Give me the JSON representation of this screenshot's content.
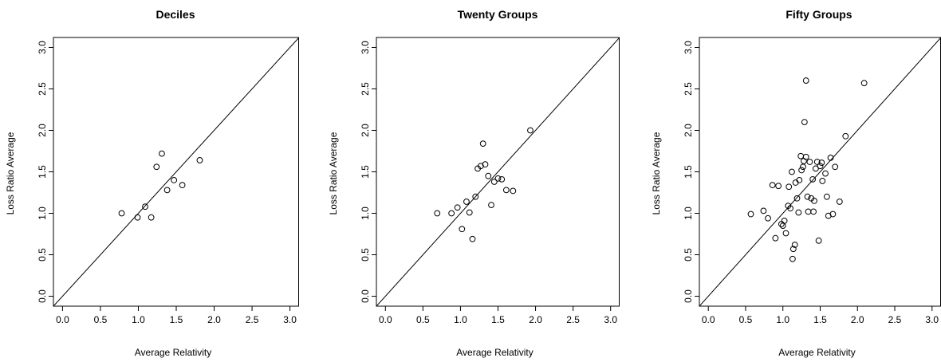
{
  "chart_data": [
    {
      "type": "scatter",
      "title": "Deciles",
      "xlabel": "Average Relativity",
      "ylabel": "Loss Ratio Average",
      "xlim": [
        -0.12,
        3.12
      ],
      "ylim": [
        -0.12,
        3.12
      ],
      "xticks": [
        "0.0",
        "0.5",
        "1.0",
        "1.5",
        "2.0",
        "2.5",
        "3.0"
      ],
      "yticks": [
        "0.0",
        "0.5",
        "1.0",
        "1.5",
        "2.0",
        "2.5",
        "3.0"
      ],
      "reference_line": "y = x",
      "grid": false,
      "legend": "none",
      "points": [
        {
          "x": 0.78,
          "y": 1.0
        },
        {
          "x": 0.99,
          "y": 0.95
        },
        {
          "x": 1.09,
          "y": 1.08
        },
        {
          "x": 1.17,
          "y": 0.95
        },
        {
          "x": 1.24,
          "y": 1.56
        },
        {
          "x": 1.31,
          "y": 1.72
        },
        {
          "x": 1.38,
          "y": 1.28
        },
        {
          "x": 1.47,
          "y": 1.4
        },
        {
          "x": 1.58,
          "y": 1.34
        },
        {
          "x": 1.81,
          "y": 1.64
        }
      ]
    },
    {
      "type": "scatter",
      "title": "Twenty Groups",
      "xlabel": "Average Relativity",
      "ylabel": "Loss Ratio Average",
      "xlim": [
        -0.12,
        3.12
      ],
      "ylim": [
        -0.12,
        3.12
      ],
      "xticks": [
        "0.0",
        "0.5",
        "1.0",
        "1.5",
        "2.0",
        "2.5",
        "3.0"
      ],
      "yticks": [
        "0.0",
        "0.5",
        "1.0",
        "1.5",
        "2.0",
        "2.5",
        "3.0"
      ],
      "reference_line": "y = x",
      "grid": false,
      "legend": "none",
      "points": [
        {
          "x": 0.69,
          "y": 1.0
        },
        {
          "x": 0.88,
          "y": 1.0
        },
        {
          "x": 0.96,
          "y": 1.07
        },
        {
          "x": 1.02,
          "y": 0.81
        },
        {
          "x": 1.08,
          "y": 1.14
        },
        {
          "x": 1.12,
          "y": 1.01
        },
        {
          "x": 1.16,
          "y": 0.69
        },
        {
          "x": 1.2,
          "y": 1.2
        },
        {
          "x": 1.23,
          "y": 1.54
        },
        {
          "x": 1.27,
          "y": 1.57
        },
        {
          "x": 1.3,
          "y": 1.84
        },
        {
          "x": 1.33,
          "y": 1.59
        },
        {
          "x": 1.37,
          "y": 1.45
        },
        {
          "x": 1.41,
          "y": 1.1
        },
        {
          "x": 1.45,
          "y": 1.38
        },
        {
          "x": 1.5,
          "y": 1.42
        },
        {
          "x": 1.55,
          "y": 1.41
        },
        {
          "x": 1.61,
          "y": 1.28
        },
        {
          "x": 1.7,
          "y": 1.27
        },
        {
          "x": 1.93,
          "y": 2.0
        }
      ]
    },
    {
      "type": "scatter",
      "title": "Fifty Groups",
      "xlabel": "Average Relativity",
      "ylabel": "Loss Ratio Average",
      "xlim": [
        -0.12,
        3.12
      ],
      "ylim": [
        -0.12,
        3.12
      ],
      "xticks": [
        "0.0",
        "0.5",
        "1.0",
        "1.5",
        "2.0",
        "2.5",
        "3.0"
      ],
      "yticks": [
        "0.0",
        "0.5",
        "1.0",
        "1.5",
        "2.0",
        "2.5",
        "3.0"
      ],
      "reference_line": "y = x",
      "grid": false,
      "legend": "none",
      "points": [
        {
          "x": 0.57,
          "y": 0.99
        },
        {
          "x": 0.74,
          "y": 1.03
        },
        {
          "x": 0.8,
          "y": 0.94
        },
        {
          "x": 0.86,
          "y": 1.34
        },
        {
          "x": 0.9,
          "y": 0.7
        },
        {
          "x": 0.94,
          "y": 1.33
        },
        {
          "x": 0.98,
          "y": 0.87
        },
        {
          "x": 1.0,
          "y": 0.85
        },
        {
          "x": 1.02,
          "y": 0.91
        },
        {
          "x": 1.04,
          "y": 0.76
        },
        {
          "x": 1.07,
          "y": 1.09
        },
        {
          "x": 1.08,
          "y": 1.32
        },
        {
          "x": 1.1,
          "y": 1.06
        },
        {
          "x": 1.12,
          "y": 1.5
        },
        {
          "x": 1.13,
          "y": 0.45
        },
        {
          "x": 1.14,
          "y": 0.57
        },
        {
          "x": 1.16,
          "y": 0.62
        },
        {
          "x": 1.17,
          "y": 1.37
        },
        {
          "x": 1.19,
          "y": 1.18
        },
        {
          "x": 1.21,
          "y": 1.01
        },
        {
          "x": 1.22,
          "y": 1.4
        },
        {
          "x": 1.24,
          "y": 1.69
        },
        {
          "x": 1.25,
          "y": 1.52
        },
        {
          "x": 1.27,
          "y": 1.56
        },
        {
          "x": 1.28,
          "y": 1.63
        },
        {
          "x": 1.29,
          "y": 2.1
        },
        {
          "x": 1.31,
          "y": 1.68
        },
        {
          "x": 1.31,
          "y": 2.6
        },
        {
          "x": 1.33,
          "y": 1.2
        },
        {
          "x": 1.34,
          "y": 1.02
        },
        {
          "x": 1.36,
          "y": 1.62
        },
        {
          "x": 1.38,
          "y": 1.18
        },
        {
          "x": 1.4,
          "y": 1.41
        },
        {
          "x": 1.41,
          "y": 1.02
        },
        {
          "x": 1.42,
          "y": 1.15
        },
        {
          "x": 1.44,
          "y": 1.54
        },
        {
          "x": 1.46,
          "y": 1.62
        },
        {
          "x": 1.48,
          "y": 0.67
        },
        {
          "x": 1.5,
          "y": 1.57
        },
        {
          "x": 1.52,
          "y": 1.61
        },
        {
          "x": 1.53,
          "y": 1.39
        },
        {
          "x": 1.57,
          "y": 1.48
        },
        {
          "x": 1.59,
          "y": 1.2
        },
        {
          "x": 1.61,
          "y": 0.97
        },
        {
          "x": 1.64,
          "y": 1.67
        },
        {
          "x": 1.67,
          "y": 0.99
        },
        {
          "x": 1.7,
          "y": 1.56
        },
        {
          "x": 1.76,
          "y": 1.14
        },
        {
          "x": 1.84,
          "y": 1.93
        },
        {
          "x": 2.09,
          "y": 2.57
        }
      ]
    }
  ]
}
